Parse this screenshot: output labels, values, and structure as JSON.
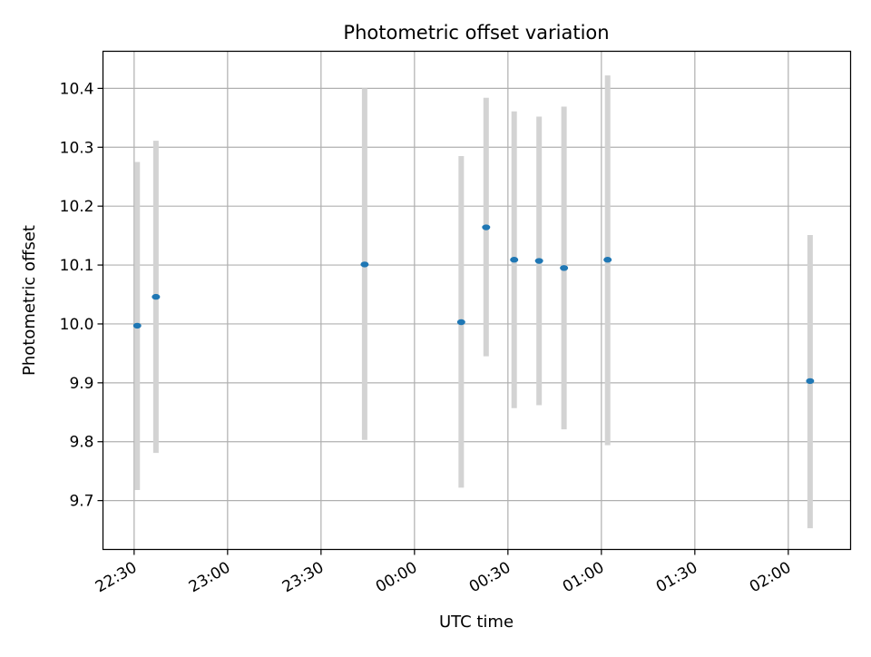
{
  "chart_data": {
    "type": "scatter",
    "title": "Photometric offset variation",
    "xlabel": "UTC time",
    "ylabel": "Photometric offset",
    "x_tick_labels": [
      "22:30",
      "23:00",
      "23:30",
      "00:00",
      "00:30",
      "01:00",
      "01:30",
      "02:00"
    ],
    "x_tick_values": [
      "22:30",
      "23:00",
      "23:30",
      "00:00",
      "00:30",
      "01:00",
      "01:30",
      "02:00"
    ],
    "y_tick_labels": [
      "9.7",
      "9.8",
      "9.9",
      "10.0",
      "10.1",
      "10.2",
      "10.3",
      "10.4"
    ],
    "y_tick_values": [
      9.7,
      9.8,
      9.9,
      10.0,
      10.1,
      10.2,
      10.3,
      10.4
    ],
    "xlim": [
      "22:20",
      "02:20"
    ],
    "ylim": [
      9.617,
      10.463
    ],
    "grid": true,
    "colors": {
      "point": "#1f77b4",
      "errorbar": "#d3d3d3",
      "grid": "#b0b0b0"
    },
    "points": [
      {
        "x": "22:31",
        "y": 9.997,
        "y_low": 9.718,
        "y_high": 10.275
      },
      {
        "x": "22:37",
        "y": 10.046,
        "y_low": 9.781,
        "y_high": 10.311
      },
      {
        "x": "23:44",
        "y": 10.101,
        "y_low": 9.803,
        "y_high": 10.4
      },
      {
        "x": "00:15",
        "y": 10.003,
        "y_low": 9.722,
        "y_high": 10.285
      },
      {
        "x": "00:23",
        "y": 10.164,
        "y_low": 9.945,
        "y_high": 10.384
      },
      {
        "x": "00:32",
        "y": 10.109,
        "y_low": 9.857,
        "y_high": 10.361
      },
      {
        "x": "00:40",
        "y": 10.107,
        "y_low": 9.862,
        "y_high": 10.352
      },
      {
        "x": "00:48",
        "y": 10.095,
        "y_low": 9.821,
        "y_high": 10.369
      },
      {
        "x": "01:02",
        "y": 10.109,
        "y_low": 9.794,
        "y_high": 10.422
      },
      {
        "x": "02:07",
        "y": 9.903,
        "y_low": 9.653,
        "y_high": 10.151
      }
    ]
  }
}
